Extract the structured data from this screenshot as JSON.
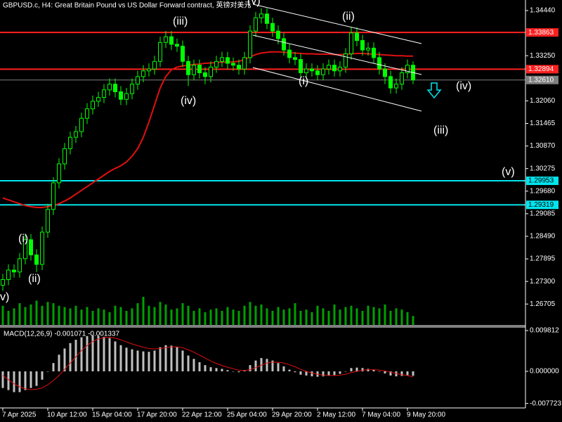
{
  "chart_data": [
    {
      "type": "candlestick",
      "title": "GBPUSD.c, H4:  Great Britain Pound vs US Dollar Forward contract, 英镑对美元",
      "categories": [
        "7 Apr 2025",
        null,
        null,
        null,
        null,
        null,
        null,
        null,
        "10 Apr 12:00",
        null,
        null,
        null,
        null,
        null,
        null,
        null,
        "15 Apr 04:00",
        null,
        null,
        null,
        null,
        null,
        null,
        null,
        "17 Apr 20:00",
        null,
        null,
        null,
        null,
        null,
        null,
        null,
        "22 Apr 12:00",
        null,
        null,
        null,
        null,
        null,
        null,
        null,
        "25 Apr 04:00",
        null,
        null,
        null,
        null,
        null,
        null,
        null,
        "29 Apr 20:00",
        null,
        null,
        null,
        null,
        null,
        null,
        null,
        "2 May 12:00",
        null,
        null,
        null,
        null,
        null,
        null,
        null,
        "7 May 04:00",
        null,
        null,
        null,
        null,
        null,
        null,
        null,
        "9 May 20:00",
        null
      ],
      "open": [
        1.272,
        1.2735,
        1.276,
        1.2755,
        1.279,
        1.284,
        1.28,
        1.2775,
        1.286,
        1.292,
        1.299,
        1.304,
        1.308,
        1.311,
        1.3125,
        1.316,
        1.3185,
        1.3205,
        1.3215,
        1.3235,
        1.325,
        1.323,
        1.321,
        1.3225,
        1.325,
        1.327,
        1.3285,
        1.329,
        1.331,
        1.336,
        1.3375,
        1.3355,
        1.335,
        1.331,
        1.3275,
        1.33,
        1.328,
        1.327,
        1.3295,
        1.331,
        1.332,
        1.3305,
        1.33,
        1.329,
        1.332,
        1.339,
        1.3425,
        1.3435,
        1.341,
        1.339,
        1.337,
        1.334,
        1.332,
        1.3315,
        1.328,
        1.329,
        1.3285,
        1.3275,
        1.329,
        1.33,
        1.3285,
        1.3295,
        1.333,
        1.3385,
        1.3365,
        1.334,
        1.3345,
        1.332,
        1.329,
        1.327,
        1.324,
        1.325,
        1.328,
        1.33
      ],
      "high": [
        1.275,
        1.2775,
        1.2775,
        1.2805,
        1.2855,
        1.2855,
        1.2815,
        1.2875,
        1.2935,
        1.3005,
        1.3055,
        1.3095,
        1.3125,
        1.314,
        1.3175,
        1.32,
        1.322,
        1.323,
        1.325,
        1.3265,
        1.3265,
        1.3245,
        1.324,
        1.3265,
        1.3285,
        1.33,
        1.3305,
        1.3325,
        1.3375,
        1.339,
        1.339,
        1.337,
        1.3365,
        1.3325,
        1.3315,
        1.3315,
        1.3295,
        1.331,
        1.3325,
        1.3335,
        1.3335,
        1.332,
        1.3315,
        1.3335,
        1.3405,
        1.344,
        1.345,
        1.345,
        1.3425,
        1.3405,
        1.3385,
        1.3355,
        1.3335,
        1.333,
        1.3305,
        1.3305,
        1.33,
        1.3305,
        1.3315,
        1.3315,
        1.331,
        1.3345,
        1.34,
        1.34,
        1.338,
        1.336,
        1.336,
        1.3335,
        1.3305,
        1.3285,
        1.3265,
        1.3295,
        1.3315,
        1.331
      ],
      "low": [
        1.2705,
        1.272,
        1.274,
        1.274,
        1.2775,
        1.2785,
        1.2755,
        1.276,
        1.2845,
        1.2905,
        1.2975,
        1.3025,
        1.3065,
        1.3095,
        1.311,
        1.3145,
        1.317,
        1.319,
        1.32,
        1.322,
        1.3215,
        1.3195,
        1.3195,
        1.321,
        1.3235,
        1.3255,
        1.327,
        1.3275,
        1.3295,
        1.3345,
        1.334,
        1.3335,
        1.3295,
        1.3245,
        1.326,
        1.3265,
        1.325,
        1.3255,
        1.328,
        1.3295,
        1.329,
        1.3285,
        1.3275,
        1.3275,
        1.3305,
        1.3375,
        1.341,
        1.3395,
        1.3375,
        1.3355,
        1.3325,
        1.3305,
        1.33,
        1.3265,
        1.3265,
        1.327,
        1.326,
        1.326,
        1.3275,
        1.327,
        1.327,
        1.328,
        1.3315,
        1.335,
        1.3325,
        1.3325,
        1.3305,
        1.3275,
        1.325,
        1.3225,
        1.3225,
        1.3235,
        1.3265,
        1.325
      ],
      "close": [
        1.2735,
        1.276,
        1.2755,
        1.279,
        1.284,
        1.28,
        1.2775,
        1.286,
        1.292,
        1.299,
        1.304,
        1.308,
        1.311,
        1.3125,
        1.316,
        1.3185,
        1.3205,
        1.3215,
        1.3235,
        1.325,
        1.323,
        1.321,
        1.3225,
        1.325,
        1.327,
        1.3285,
        1.329,
        1.331,
        1.336,
        1.3375,
        1.3355,
        1.335,
        1.331,
        1.3275,
        1.33,
        1.328,
        1.327,
        1.3295,
        1.331,
        1.332,
        1.3305,
        1.33,
        1.329,
        1.332,
        1.339,
        1.3425,
        1.3435,
        1.341,
        1.339,
        1.337,
        1.334,
        1.332,
        1.3315,
        1.328,
        1.329,
        1.3285,
        1.3275,
        1.329,
        1.33,
        1.3285,
        1.3295,
        1.333,
        1.3385,
        1.3365,
        1.334,
        1.3345,
        1.332,
        1.329,
        1.327,
        1.324,
        1.325,
        1.328,
        1.33,
        1.3261
      ],
      "ma": [
        1.295,
        1.2945,
        1.294,
        1.2935,
        1.293,
        1.2927,
        1.2925,
        1.2925,
        1.2927,
        1.293,
        1.2935,
        1.2942,
        1.295,
        1.296,
        1.297,
        1.298,
        1.299,
        1.3,
        1.301,
        1.302,
        1.3028,
        1.3035,
        1.3045,
        1.306,
        1.308,
        1.311,
        1.315,
        1.3195,
        1.324,
        1.327,
        1.3288,
        1.3295,
        1.3298,
        1.33,
        1.3302,
        1.3303,
        1.3305,
        1.3306,
        1.3307,
        1.3308,
        1.3308,
        1.3309,
        1.331,
        1.3315,
        1.3322,
        1.3328,
        1.3332,
        1.3334,
        1.3335,
        1.3335,
        1.3334,
        1.3333,
        1.3332,
        1.3331,
        1.333,
        1.333,
        1.3329,
        1.3329,
        1.3329,
        1.3328,
        1.3328,
        1.3329,
        1.333,
        1.3331,
        1.3331,
        1.333,
        1.3329,
        1.3328,
        1.3327,
        1.3326,
        1.3325,
        1.3325,
        1.3324,
        1.3324
      ],
      "volume": [
        30,
        22,
        26,
        34,
        28,
        32,
        38,
        30,
        36,
        34,
        30,
        28,
        26,
        30,
        24,
        28,
        22,
        26,
        24,
        20,
        30,
        28,
        22,
        26,
        34,
        44,
        30,
        28,
        36,
        32,
        24,
        26,
        34,
        30,
        22,
        26,
        20,
        24,
        26,
        22,
        28,
        24,
        22,
        30,
        36,
        30,
        32,
        26,
        22,
        28,
        24,
        26,
        34,
        22,
        24,
        20,
        30,
        26,
        22,
        32,
        24,
        28,
        30,
        26,
        22,
        30,
        28,
        26,
        32,
        22,
        26,
        24,
        20,
        14
      ],
      "candle_color": "#00ff00",
      "ma_color": "#e01010",
      "volume_color": "#00a000",
      "ylim": [
        1.26154,
        1.34718
      ],
      "yticks": [
        {
          "value": 1.3444,
          "label": "1.34440"
        },
        {
          "value": 1.3325,
          "label": "1.33250"
        },
        {
          "value": 1.3206,
          "label": "1.32060"
        },
        1.31465,
        {
          "value": 1.3087,
          "label": "1.30870"
        },
        1.30275,
        {
          "value": 1.2968,
          "label": "1.29680"
        },
        1.29085,
        {
          "value": 1.2849,
          "label": "1.28490"
        },
        1.27895,
        {
          "value": 1.273,
          "label": "1.27300"
        },
        1.26705
      ],
      "levels": [
        {
          "value": 1.33863,
          "color": "#ff2020"
        },
        {
          "value": 1.32894,
          "color": "#ff2020"
        },
        {
          "value": 1.29953,
          "color": "#00e5ee"
        },
        {
          "value": 1.29319,
          "color": "#00e5ee"
        }
      ],
      "current_price": {
        "value": 1.3261,
        "label": "1.32610"
      },
      "annotations": [
        "v)",
        "(i)",
        "(ii)",
        "(iii)",
        "(iv)",
        "(v)",
        "(i)",
        "(ii)",
        "(iii)",
        "(iv)",
        "(v)"
      ]
    },
    {
      "type": "macd",
      "title": "MACD(12,26,9) -0.001071 -0.001337",
      "values": [
        -0.004,
        -0.0045,
        -0.005,
        -0.005,
        -0.0045,
        -0.004,
        -0.0035,
        -0.002,
        0.0,
        0.002,
        0.004,
        0.0055,
        0.0068,
        0.0076,
        0.0082,
        0.0085,
        0.0086,
        0.0085,
        0.0083,
        0.008,
        0.0072,
        0.0063,
        0.0057,
        0.0053,
        0.005,
        0.0048,
        0.0047,
        0.005,
        0.0058,
        0.0063,
        0.0062,
        0.0058,
        0.005,
        0.0038,
        0.003,
        0.0022,
        0.0015,
        0.001,
        0.0008,
        0.0006,
        0.0003,
        0.0,
        -0.0002,
        0.0003,
        0.0015,
        0.0026,
        0.0032,
        0.003,
        0.0026,
        0.002,
        0.0012,
        0.0004,
        -0.0002,
        -0.0008,
        -0.001,
        -0.0012,
        -0.0013,
        -0.0012,
        -0.001,
        -0.0009,
        -0.0006,
        0.0,
        0.0008,
        0.0009,
        0.0008,
        0.0006,
        0.0004,
        0.0,
        -0.0005,
        -0.001,
        -0.0012,
        -0.0011,
        -0.001,
        -0.001071
      ],
      "signal": [
        -0.001,
        -0.002,
        -0.003,
        -0.0037,
        -0.0042,
        -0.0044,
        -0.0043,
        -0.004,
        -0.0032,
        -0.0022,
        -0.001,
        0.0005,
        0.002,
        0.0035,
        0.005,
        0.0062,
        0.0072,
        0.0078,
        0.0081,
        0.0082,
        0.008,
        0.0076,
        0.0071,
        0.0066,
        0.0062,
        0.0058,
        0.0055,
        0.0054,
        0.0055,
        0.0057,
        0.0059,
        0.0059,
        0.0057,
        0.0052,
        0.0046,
        0.0039,
        0.0032,
        0.0025,
        0.0019,
        0.0014,
        0.001,
        0.0006,
        0.0003,
        0.0002,
        0.0004,
        0.0009,
        0.0015,
        0.002,
        0.0022,
        0.0022,
        0.002,
        0.0016,
        0.0011,
        0.0005,
        0.0,
        -0.0004,
        -0.0007,
        -0.0009,
        -0.001,
        -0.001,
        -0.0009,
        -0.0007,
        -0.0003,
        0.0,
        0.0003,
        0.0004,
        0.0004,
        0.0003,
        0.0001,
        -0.0002,
        -0.0005,
        -0.0008,
        -0.001,
        -0.001337
      ],
      "bar_color": "#c0c0c0",
      "signal_color": "#e01010",
      "ylim": [
        -0.0088,
        0.01066
      ],
      "yticks": [
        0.009812,
        {
          "value": 0,
          "label": "0.000000"
        },
        -0.007723
      ]
    }
  ]
}
